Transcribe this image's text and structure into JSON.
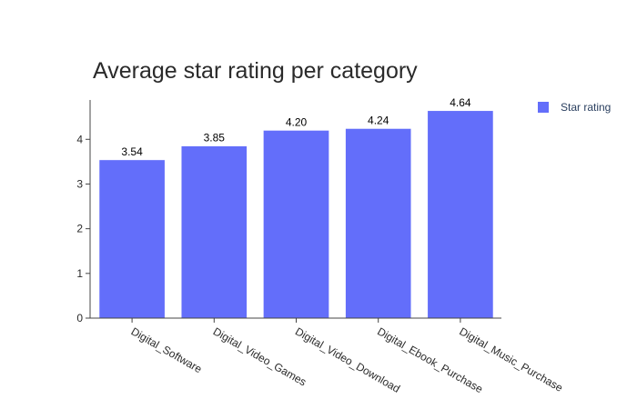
{
  "chart_data": {
    "type": "bar",
    "title": "Average star rating per category",
    "xlabel": "",
    "ylabel": "",
    "categories": [
      "Digital_Software",
      "Digital_Video_Games",
      "Digital_Video_Download",
      "Digital_Ebook_Purchase",
      "Digital_Music_Purchase"
    ],
    "series": [
      {
        "name": "Star rating",
        "values": [
          3.54,
          3.85,
          4.2,
          4.24,
          4.64
        ],
        "labels": [
          "3.54",
          "3.85",
          "4.20",
          "4.24",
          "4.64"
        ],
        "color": "#636efa"
      }
    ],
    "yticks": [
      0,
      1,
      2,
      3,
      4
    ],
    "ylim": [
      0,
      4.88
    ],
    "grid": false,
    "legend_position": "top-right"
  }
}
